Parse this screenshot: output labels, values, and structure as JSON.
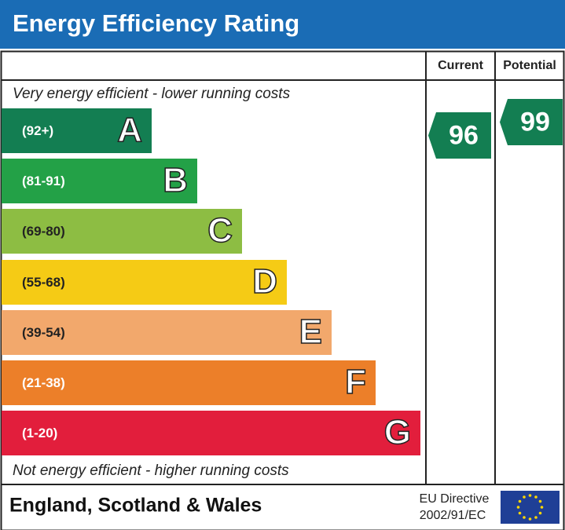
{
  "header": {
    "title": "Energy Efficiency Rating"
  },
  "columns": {
    "current": "Current",
    "potential": "Potential"
  },
  "top_note": "Very energy efficient - lower running costs",
  "bottom_note": "Not energy efficient - higher running costs",
  "bands": [
    {
      "range": "(92+)",
      "letter": "A",
      "color": "#137e52"
    },
    {
      "range": "(81-91)",
      "letter": "B",
      "color": "#23a147"
    },
    {
      "range": "(69-80)",
      "letter": "C",
      "color": "#8dbd43"
    },
    {
      "range": "(55-68)",
      "letter": "D",
      "color": "#f5cb15"
    },
    {
      "range": "(39-54)",
      "letter": "E",
      "color": "#f2a86c"
    },
    {
      "range": "(21-38)",
      "letter": "F",
      "color": "#ec7f29"
    },
    {
      "range": "(1-20)",
      "letter": "G",
      "color": "#e21e3c"
    }
  ],
  "ratings": {
    "current": {
      "value": "96",
      "color": "#137e52"
    },
    "potential": {
      "value": "99",
      "color": "#137e52"
    }
  },
  "footer": {
    "region": "England, Scotland & Wales",
    "directive_line1": "EU Directive",
    "directive_line2": "2002/91/EC"
  }
}
